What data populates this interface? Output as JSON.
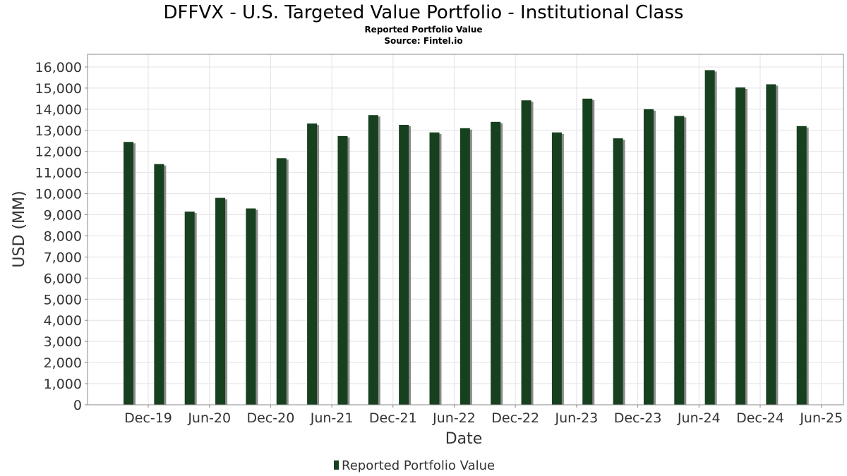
{
  "chart_data": {
    "type": "bar",
    "title": "DFFVX - U.S. Targeted Value Portfolio - Institutional Class",
    "subtitle": "Reported Portfolio Value",
    "source": "Source: Fintel.io",
    "xlabel": "Date",
    "ylabel": "USD (MM)",
    "ylim": [
      0,
      16600
    ],
    "y_ticks": [
      0,
      1000,
      2000,
      3000,
      4000,
      5000,
      6000,
      7000,
      8000,
      9000,
      10000,
      11000,
      12000,
      13000,
      14000,
      15000,
      16000
    ],
    "y_tick_labels": [
      "0",
      "1,000",
      "2,000",
      "3,000",
      "4,000",
      "5,000",
      "6,000",
      "7,000",
      "8,000",
      "9,000",
      "10,000",
      "11,000",
      "12,000",
      "13,000",
      "14,000",
      "15,000",
      "16,000"
    ],
    "x_tick_labels": [
      "Dec-19",
      "Jun-20",
      "Dec-20",
      "Jun-21",
      "Dec-21",
      "Jun-22",
      "Dec-22",
      "Jun-23",
      "Dec-23",
      "Jun-24",
      "Dec-24",
      "Jun-25"
    ],
    "grid": true,
    "legend_position": "bottom-center",
    "series": [
      {
        "name": "Reported Portfolio Value",
        "color": "#17401f",
        "shadow_color": "#8c8c8c",
        "values": [
          12450,
          11400,
          9150,
          9800,
          9300,
          11680,
          13320,
          12730,
          13720,
          13260,
          12900,
          13100,
          13400,
          14420,
          12900,
          14500,
          12620,
          14000,
          13680,
          15850,
          15030,
          15180,
          13200
        ]
      }
    ]
  }
}
